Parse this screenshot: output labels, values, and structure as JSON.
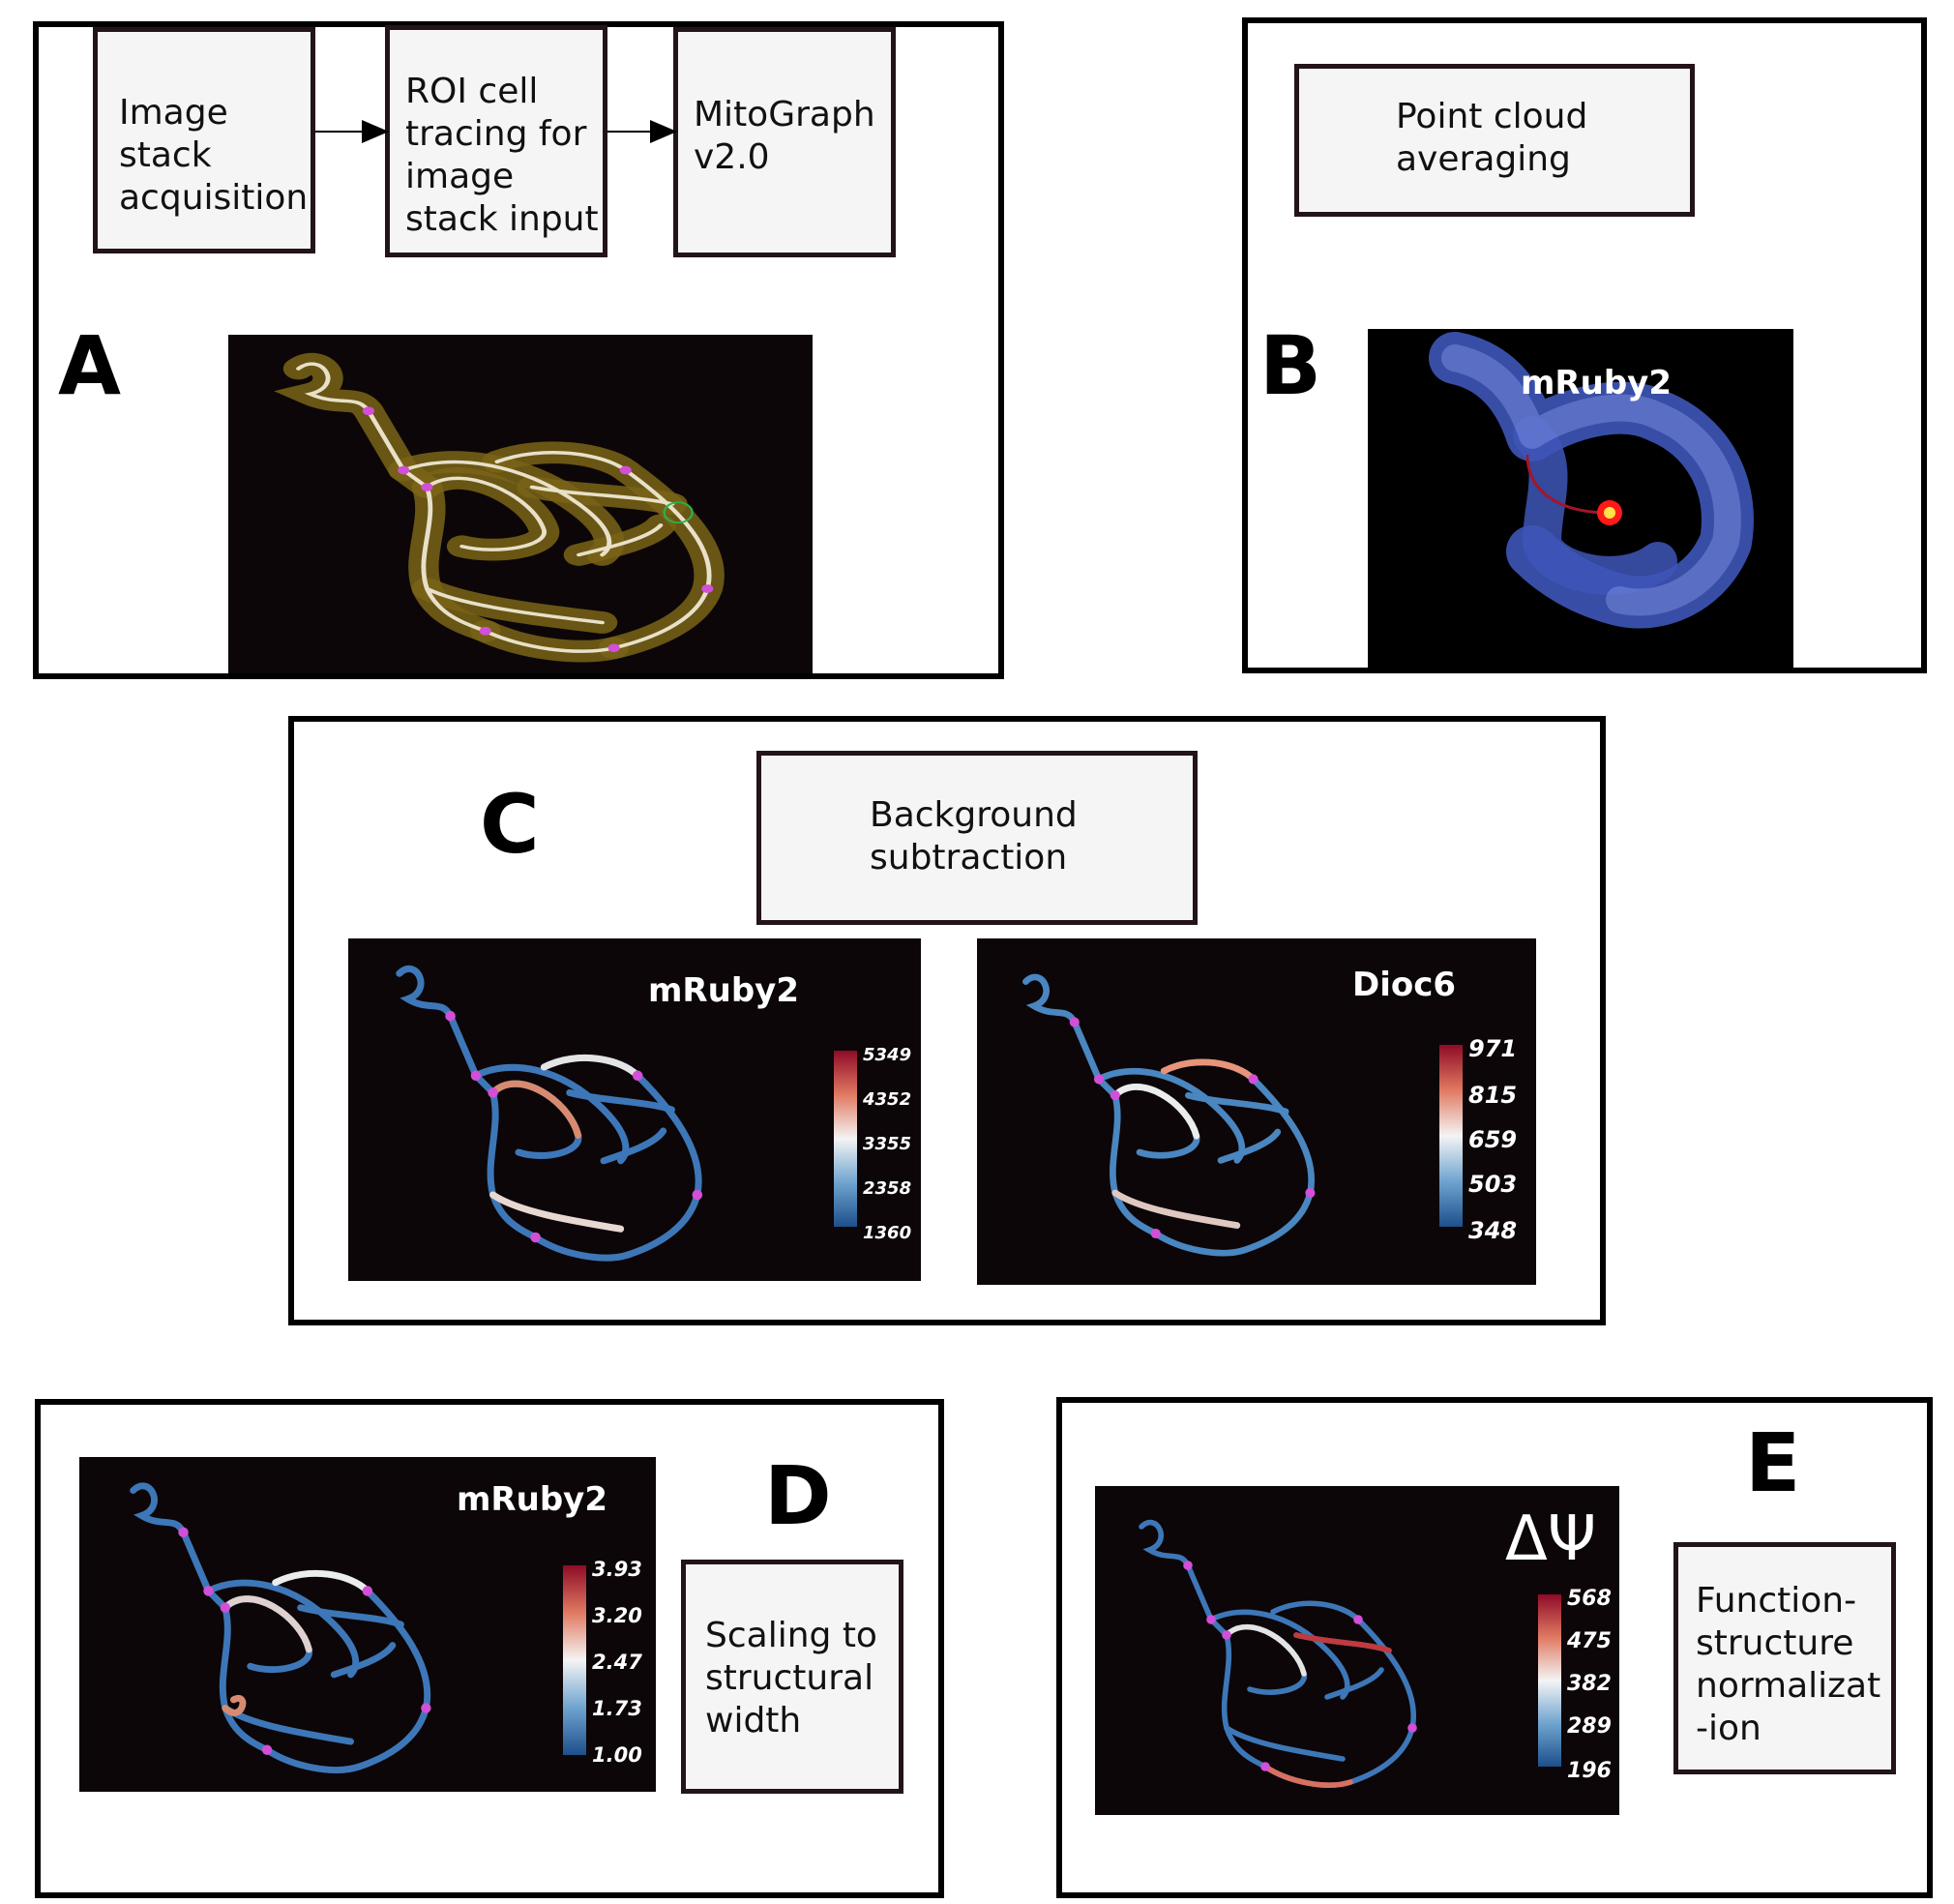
{
  "panels": {
    "a": {
      "letter": "A",
      "boxes": [
        "Image\nstack\nacquisition",
        "ROI cell\ntracing for\nimage\nstack input",
        "MitoGraph\nv2.0"
      ]
    },
    "b": {
      "letter": "B",
      "box": "Point cloud\naveraging",
      "image_label": "mRuby2"
    },
    "c": {
      "letter": "C",
      "box": "Background\nsubtraction",
      "left_label": "mRuby2",
      "left_ticks": [
        "5349",
        "4352",
        "3355",
        "2358",
        "1360"
      ],
      "right_label": "Dioc6",
      "right_ticks": [
        "971",
        "815",
        "659",
        "503",
        "348"
      ]
    },
    "d": {
      "letter": "D",
      "box": "Scaling to\nstructural\nwidth",
      "image_label": "mRuby2",
      "ticks": [
        "3.93",
        "3.20",
        "2.47",
        "1.73",
        "1.00"
      ]
    },
    "e": {
      "letter": "E",
      "box": "Function-\nstructure\nnormalizat\n-ion",
      "image_label": "ΔΨ",
      "ticks": [
        "568",
        "475",
        "382",
        "289",
        "196"
      ]
    }
  },
  "colors": {
    "cmap_top": "#a3152b",
    "cmap_mid": "#f2f2f2",
    "cmap_bottom": "#1d4f8c",
    "skeleton": "#e8e0c8",
    "node": "#d24fd8",
    "halo": "#7a6416"
  }
}
